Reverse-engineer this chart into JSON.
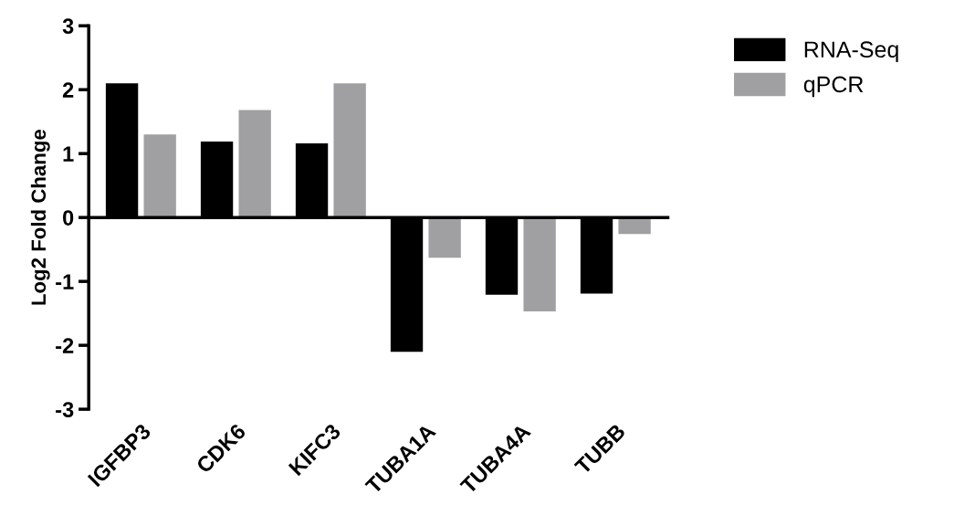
{
  "chart_data": {
    "type": "bar",
    "ylabel": "Log2 Fold Change",
    "categories": [
      "IGFBP3",
      "CDK6",
      "KIFC3",
      "TUBA1A",
      "TUBA4A",
      "TUBB"
    ],
    "series": [
      {
        "name": "RNA-Seq",
        "color": "#000000",
        "values": [
          2.1,
          1.19,
          1.16,
          -2.1,
          -1.21,
          -1.19
        ]
      },
      {
        "name": "qPCR",
        "color": "#a0a0a3",
        "values": [
          1.3,
          1.68,
          2.1,
          -0.63,
          -1.47,
          -0.26
        ]
      }
    ],
    "ylim": [
      -3,
      3
    ],
    "yticks": [
      -3,
      -2,
      -1,
      0,
      1,
      2,
      3
    ],
    "legend": "top right"
  }
}
